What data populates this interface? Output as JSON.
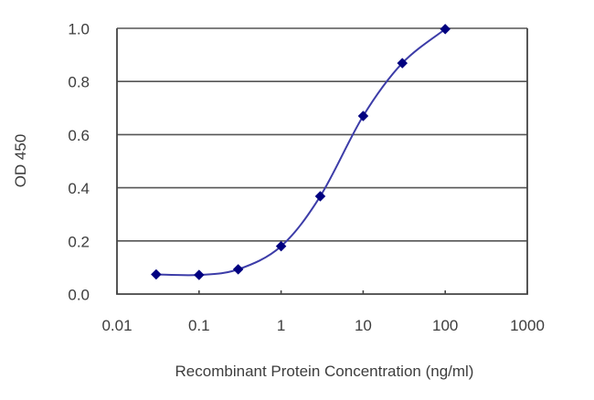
{
  "chart_data": {
    "type": "line",
    "title": "",
    "xlabel": "Recombinant Protein Concentration (ng/ml)",
    "ylabel": "OD 450",
    "x_scale": "log",
    "xlim": [
      0.01,
      1000
    ],
    "ylim": [
      0.0,
      1.0
    ],
    "x_ticks": [
      0.01,
      0.1,
      1,
      10,
      100,
      1000
    ],
    "x_tick_labels": [
      "0.01",
      "0.1",
      "1",
      "10",
      "100",
      "1000"
    ],
    "y_ticks": [
      0.0,
      0.2,
      0.4,
      0.6,
      0.8,
      1.0
    ],
    "y_tick_labels": [
      "0.0",
      "0.2",
      "0.4",
      "0.6",
      "0.8",
      "1.0"
    ],
    "grid": {
      "horizontal": true,
      "vertical": false
    },
    "legend": null,
    "series": [
      {
        "name": "OD 450",
        "color": "#000080",
        "line_color": "#3c3ca8",
        "marker": "diamond",
        "smooth": true,
        "x": [
          0.03,
          0.1,
          0.3,
          1,
          3,
          10,
          30,
          100
        ],
        "values": [
          0.074,
          0.072,
          0.093,
          0.18,
          0.368,
          0.67,
          0.869,
          0.997
        ]
      }
    ]
  },
  "style": {
    "grid_color": "#555555",
    "axis_color": "#444444",
    "text_color": "#3d3d3d",
    "background": "#ffffff"
  }
}
